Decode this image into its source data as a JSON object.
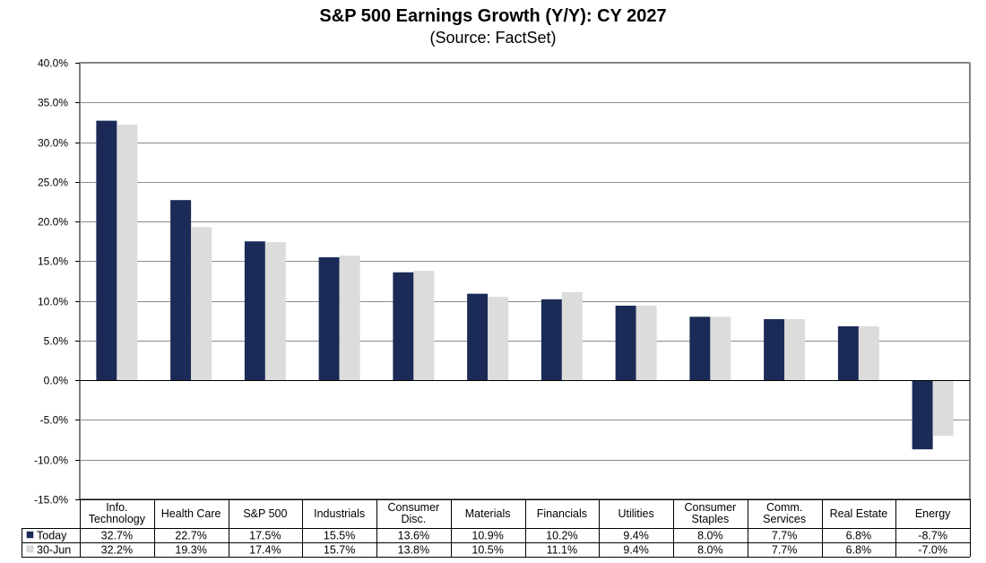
{
  "chart_data": {
    "type": "bar",
    "title": "S&P 500 Earnings Growth (Y/Y): CY 2027",
    "subtitle": "(Source: FactSet)",
    "categories": [
      [
        "Info.",
        "Technology"
      ],
      [
        "Health Care"
      ],
      [
        "S&P 500"
      ],
      [
        "Industrials"
      ],
      [
        "Consumer",
        "Disc."
      ],
      [
        "Materials"
      ],
      [
        "Financials"
      ],
      [
        "Utilities"
      ],
      [
        "Consumer",
        "Staples"
      ],
      [
        "Comm.",
        "Services"
      ],
      [
        "Real Estate"
      ],
      [
        "Energy"
      ]
    ],
    "series": [
      {
        "name": "Today",
        "color": "#1b2a57",
        "values": [
          32.7,
          22.7,
          17.5,
          15.5,
          13.6,
          10.9,
          10.2,
          9.4,
          8.0,
          7.7,
          6.8,
          -8.7
        ],
        "labels": [
          "32.7%",
          "22.7%",
          "17.5%",
          "15.5%",
          "13.6%",
          "10.9%",
          "10.2%",
          "9.4%",
          "8.0%",
          "7.7%",
          "6.8%",
          "-8.7%"
        ]
      },
      {
        "name": "30-Jun",
        "color": "#dcdcdc",
        "values": [
          32.2,
          19.3,
          17.4,
          15.7,
          13.8,
          10.5,
          11.1,
          9.4,
          8.0,
          7.7,
          6.8,
          -7.0
        ],
        "labels": [
          "32.2%",
          "19.3%",
          "17.4%",
          "15.7%",
          "13.8%",
          "10.5%",
          "11.1%",
          "9.4%",
          "8.0%",
          "7.7%",
          "6.8%",
          "-7.0%"
        ]
      }
    ],
    "ylim": [
      -15,
      40
    ],
    "yticks": [
      40,
      35,
      30,
      25,
      20,
      15,
      10,
      5,
      0,
      -5,
      -10,
      -15
    ],
    "ytick_labels": [
      "40.0%",
      "35.0%",
      "30.0%",
      "25.0%",
      "20.0%",
      "15.0%",
      "10.0%",
      "5.0%",
      "0.0%",
      "-5.0%",
      "-10.0%",
      "-15.0%"
    ],
    "grid": true,
    "legend": "data-table-left"
  }
}
